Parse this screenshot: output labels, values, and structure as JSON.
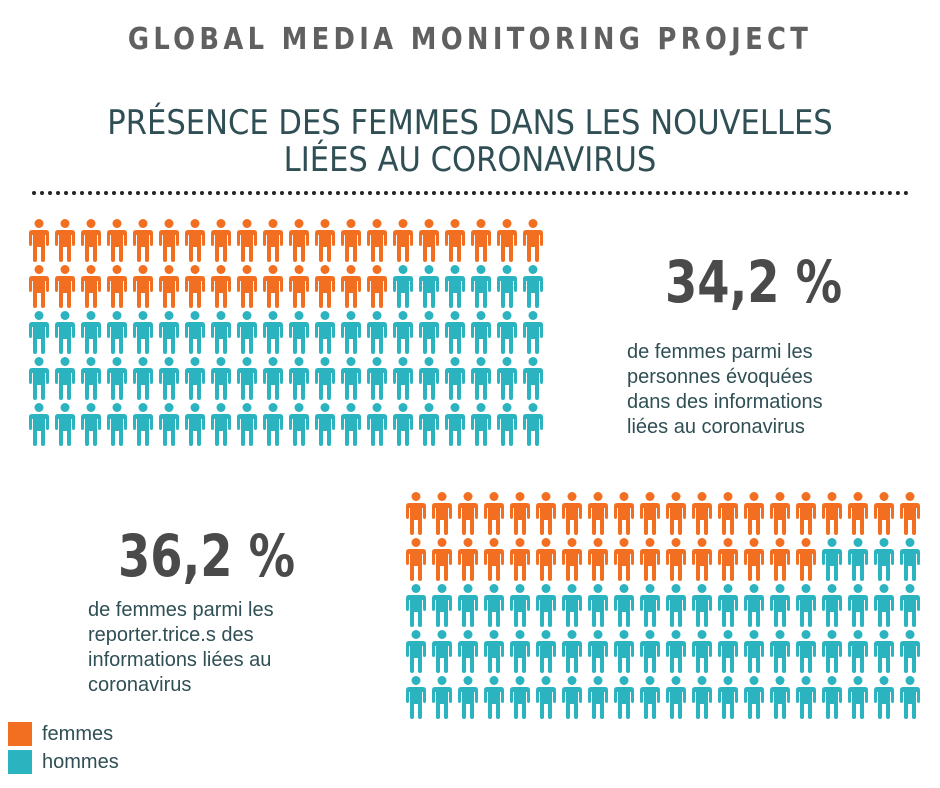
{
  "header": {
    "title": "GLOBAL MEDIA MONITORING PROJECT",
    "subtitle_lines": [
      "PRÉSENCE DES FEMMES DANS LES NOUVELLES",
      "LIÉES AU CORONAVIRUS"
    ]
  },
  "colors": {
    "femmes": "#f26f21",
    "hommes": "#2bb3c0"
  },
  "chart_data": [
    {
      "type": "pictogram",
      "categories": [
        "femmes",
        "hommes"
      ],
      "rows": 5,
      "cols": 20,
      "counts": {
        "femmes": 34,
        "hommes": 66
      },
      "stat": "34,2 %",
      "description_lines": [
        "de femmes parmi les",
        "personnes évoquées",
        "dans des informations",
        "liées au coronavirus"
      ]
    },
    {
      "type": "pictogram",
      "categories": [
        "femmes",
        "hommes"
      ],
      "rows": 5,
      "cols": 20,
      "counts": {
        "femmes": 36,
        "hommes": 64
      },
      "stat": "36,2 %",
      "description_lines": [
        "de femmes parmi les",
        "reporter.trice.s des",
        "informations liées au",
        "coronavirus"
      ]
    }
  ],
  "legend": [
    {
      "label": "femmes",
      "color": "#f26f21"
    },
    {
      "label": "hommes",
      "color": "#2bb3c0"
    }
  ]
}
